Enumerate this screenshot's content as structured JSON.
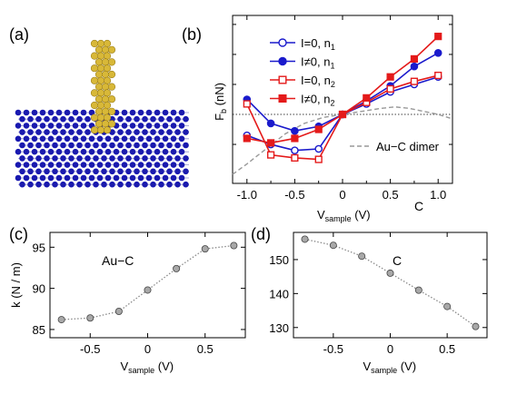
{
  "panel_labels": {
    "a": "(a)",
    "b": "(b)",
    "c": "(c)",
    "d": "(d)"
  },
  "colors": {
    "blue": "#1a1acc",
    "red": "#e41a1a",
    "dimer": "#999999",
    "gray_marker": "#a8a8a8",
    "gold": "#d8b838",
    "graphene": "#1818b0"
  },
  "image_a": {
    "description_icon": "gold-nanowire-on-graphene-illustration"
  },
  "chart_data": [
    {
      "id": "b",
      "type": "line",
      "ylabel_main": "F",
      "ylabel_sub": "b",
      "ylabel_unit": " (nN)",
      "xlabel_main": "V",
      "xlabel_sub": "sample",
      "xlabel_unit": " (V)",
      "corner_label": "C",
      "xlim": [
        -1.15,
        1.15
      ],
      "ylim": [
        -0.46,
        0.66
      ],
      "xticks": [
        -1.0,
        -0.5,
        0.0,
        0.5,
        1.0
      ],
      "xticklabels": [
        "-1.0",
        "-0.5",
        "0",
        "0.5",
        "1.0"
      ],
      "yticks": [
        0.0
      ],
      "zero_line": true,
      "legend": {
        "position": "top-left"
      },
      "x": [
        -1.0,
        -0.75,
        -0.5,
        -0.25,
        0.0,
        0.25,
        0.5,
        0.75,
        1.0
      ],
      "series": [
        {
          "name_main": "I=0, n",
          "name_sub": "1",
          "color": "#1a1acc",
          "marker": "circle",
          "filled": false,
          "values": [
            -0.14,
            -0.2,
            -0.24,
            -0.23,
            0.0,
            0.07,
            0.15,
            0.2,
            0.25
          ]
        },
        {
          "name_main": "I≠0, n",
          "name_sub": "1",
          "color": "#1a1acc",
          "marker": "circle",
          "filled": true,
          "values": [
            0.1,
            -0.06,
            -0.11,
            -0.08,
            0.0,
            0.09,
            0.19,
            0.32,
            0.41
          ]
        },
        {
          "name_main": "I=0, n",
          "name_sub": "2",
          "color": "#e41a1a",
          "marker": "square",
          "filled": false,
          "values": [
            0.07,
            -0.27,
            -0.29,
            -0.3,
            0.0,
            0.08,
            0.17,
            0.22,
            0.26
          ]
        },
        {
          "name_main": "I≠0, n",
          "name_sub": "2",
          "color": "#e41a1a",
          "marker": "square",
          "filled": true,
          "values": [
            -0.16,
            -0.19,
            -0.16,
            -0.1,
            0.0,
            0.11,
            0.25,
            0.37,
            0.52
          ]
        }
      ],
      "dimer": {
        "name": "Au−C dimer",
        "x": [
          -1.15,
          -1.0,
          -0.8,
          -0.6,
          -0.4,
          -0.2,
          0.0,
          0.2,
          0.4,
          0.55,
          0.7,
          0.85,
          1.0,
          1.15
        ],
        "values": [
          -0.4,
          -0.33,
          -0.23,
          -0.13,
          -0.06,
          -0.02,
          0.0,
          0.02,
          0.04,
          0.05,
          0.04,
          0.02,
          0.0,
          -0.03
        ]
      }
    },
    {
      "id": "c",
      "type": "line",
      "ylabel": "k (N / m)",
      "xlabel_main": "V",
      "xlabel_sub": "sample",
      "xlabel_unit": " (V)",
      "annotation": "Au−C",
      "xlim": [
        -0.85,
        0.85
      ],
      "ylim": [
        84.0,
        96.8
      ],
      "xticks": [
        -0.5,
        0.0,
        0.5
      ],
      "xticklabels": [
        "-0.5",
        "0",
        "0.5"
      ],
      "yticks": [
        85,
        90,
        95
      ],
      "yticklabels": [
        "85",
        "90",
        "95"
      ],
      "x": [
        -0.75,
        -0.5,
        -0.25,
        0.0,
        0.25,
        0.5,
        0.75
      ],
      "values": [
        86.2,
        86.4,
        87.2,
        89.8,
        92.4,
        94.8,
        95.2
      ]
    },
    {
      "id": "d",
      "type": "line",
      "xlabel_main": "V",
      "xlabel_sub": "sample",
      "xlabel_unit": " (V)",
      "annotation": "C",
      "xlim": [
        -0.85,
        0.85
      ],
      "ylim": [
        127.0,
        158.0
      ],
      "xticks": [
        -0.5,
        0.0,
        0.5
      ],
      "xticklabels": [
        "-0.5",
        "0",
        "0.5"
      ],
      "yticks": [
        130,
        140,
        150
      ],
      "yticklabels": [
        "130",
        "140",
        "150"
      ],
      "x": [
        -0.75,
        -0.5,
        -0.25,
        0.0,
        0.25,
        0.5,
        0.75
      ],
      "values": [
        156.0,
        154.2,
        151.0,
        146.0,
        141.0,
        136.2,
        130.3
      ]
    }
  ]
}
